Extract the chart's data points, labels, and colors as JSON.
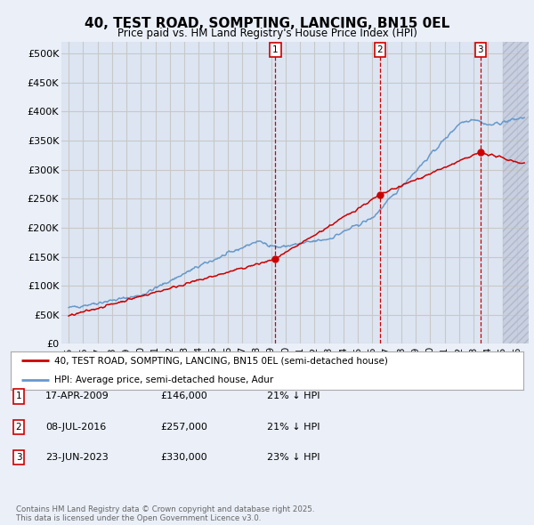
{
  "title": "40, TEST ROAD, SOMPTING, LANCING, BN15 0EL",
  "subtitle": "Price paid vs. HM Land Registry's House Price Index (HPI)",
  "ylabel_ticks": [
    "£0",
    "£50K",
    "£100K",
    "£150K",
    "£200K",
    "£250K",
    "£300K",
    "£350K",
    "£400K",
    "£450K",
    "£500K"
  ],
  "ytick_values": [
    0,
    50000,
    100000,
    150000,
    200000,
    250000,
    300000,
    350000,
    400000,
    450000,
    500000
  ],
  "ylim": [
    0,
    520000
  ],
  "xlim_start": 1994.5,
  "xlim_end": 2026.8,
  "grid_color": "#c8c8c8",
  "bg_color": "#eaeff8",
  "plot_bg": "#dde5f2",
  "hatch_color": "#c8d0e0",
  "red_line_color": "#cc0000",
  "blue_line_color": "#6699cc",
  "vline_color": "#cc0000",
  "transactions": [
    {
      "date_year": 2009.29,
      "price": 146000,
      "label": "1",
      "date_str": "17-APR-2009",
      "price_str": "£146,000",
      "pct_str": "21% ↓ HPI"
    },
    {
      "date_year": 2016.52,
      "price": 257000,
      "label": "2",
      "date_str": "08-JUL-2016",
      "price_str": "£257,000",
      "pct_str": "21% ↓ HPI"
    },
    {
      "date_year": 2023.47,
      "price": 330000,
      "label": "3",
      "date_str": "23-JUN-2023",
      "price_str": "£330,000",
      "pct_str": "23% ↓ HPI"
    }
  ],
  "legend_label_red": "40, TEST ROAD, SOMPTING, LANCING, BN15 0EL (semi-detached house)",
  "legend_label_blue": "HPI: Average price, semi-detached house, Adur",
  "footer_line1": "Contains HM Land Registry data © Crown copyright and database right 2025.",
  "footer_line2": "This data is licensed under the Open Government Licence v3.0."
}
